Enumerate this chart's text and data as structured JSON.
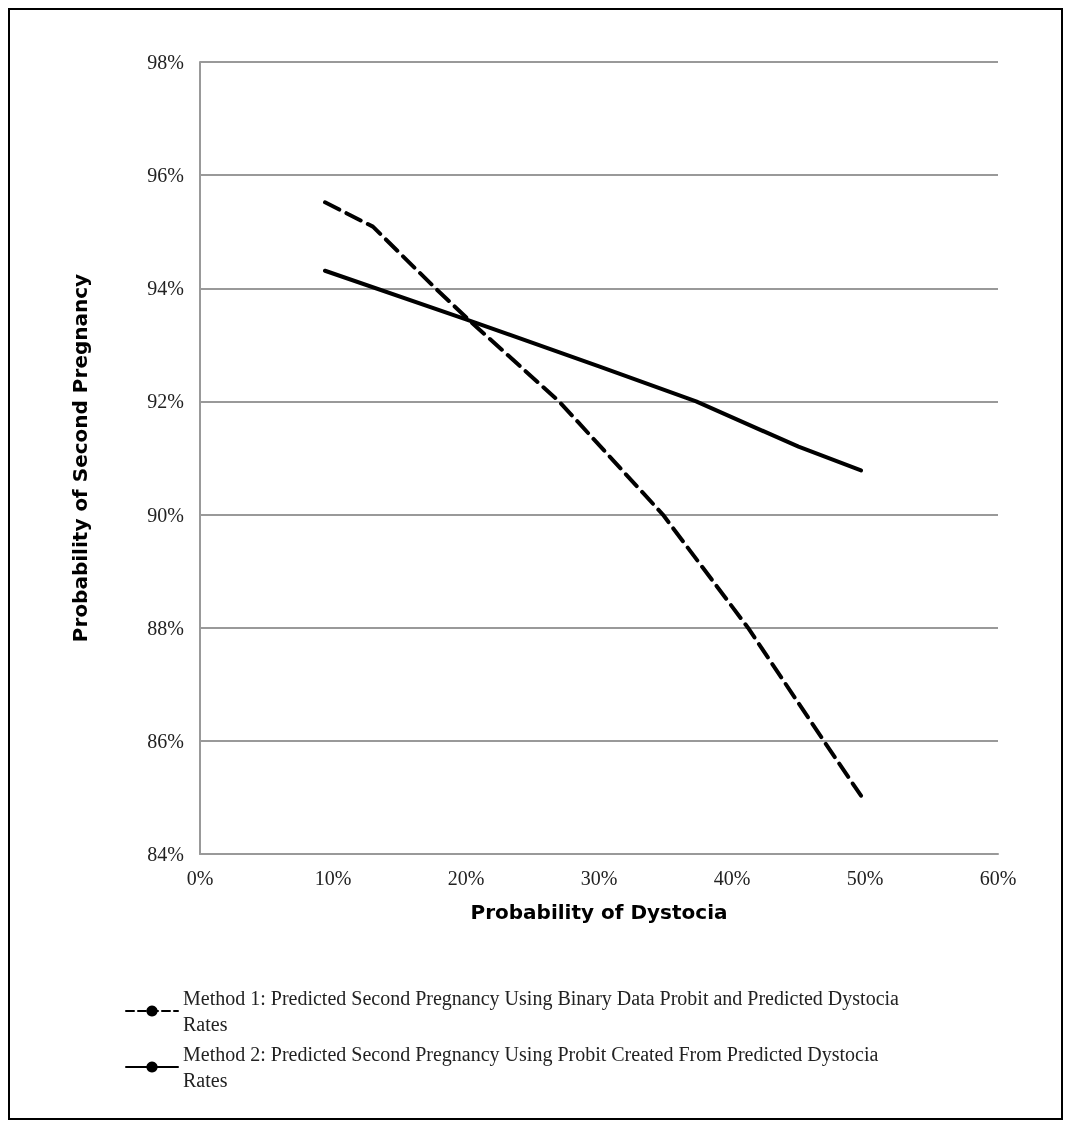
{
  "chart_data": {
    "type": "line",
    "xlabel": "Probability of Dystocia",
    "ylabel": "Probability of Second Pregnancy",
    "xlim": [
      0,
      60
    ],
    "xticks": [
      {
        "value": 0,
        "label": "0%"
      },
      {
        "value": 10,
        "label": "10%"
      },
      {
        "value": 20,
        "label": "20%"
      },
      {
        "value": 30,
        "label": "30%"
      },
      {
        "value": 40,
        "label": "40%"
      },
      {
        "value": 50,
        "label": "50%"
      },
      {
        "value": 60,
        "label": "60%"
      }
    ],
    "ylim": [
      84,
      98
    ],
    "yticks": [
      {
        "value": 84,
        "label": "84%"
      },
      {
        "value": 86,
        "label": "86%"
      },
      {
        "value": 88,
        "label": "88%"
      },
      {
        "value": 90,
        "label": "90%"
      },
      {
        "value": 92,
        "label": "92%"
      },
      {
        "value": 94,
        "label": "94%"
      },
      {
        "value": 96,
        "label": "96%"
      },
      {
        "value": 98,
        "label": "98%"
      }
    ],
    "grid": "y",
    "legend": "bottom",
    "marker": "none",
    "series": [
      {
        "name": "Method 1: Predicted Second Pregnancy Using Binary Data Probit and Predicted Dystocia Rates",
        "color": "#000000",
        "line_style": "dashed",
        "x": [
          9.4,
          13,
          17.7,
          20.4,
          27,
          34.8,
          41.2,
          46.9,
          49.7
        ],
        "values": [
          95.52,
          95.09,
          94.0,
          93.4,
          92.0,
          90.0,
          88.0,
          86.0,
          85.03
        ]
      },
      {
        "name": "Method 2: Predicted Second Pregnancy Using Probit Created From Predicted Dystocia Rates",
        "color": "#000000",
        "line_style": "solid",
        "x": [
          9.4,
          20,
          30,
          37.3,
          45,
          49.7
        ],
        "values": [
          94.31,
          93.45,
          92.62,
          92.0,
          91.2,
          90.78
        ]
      }
    ]
  }
}
